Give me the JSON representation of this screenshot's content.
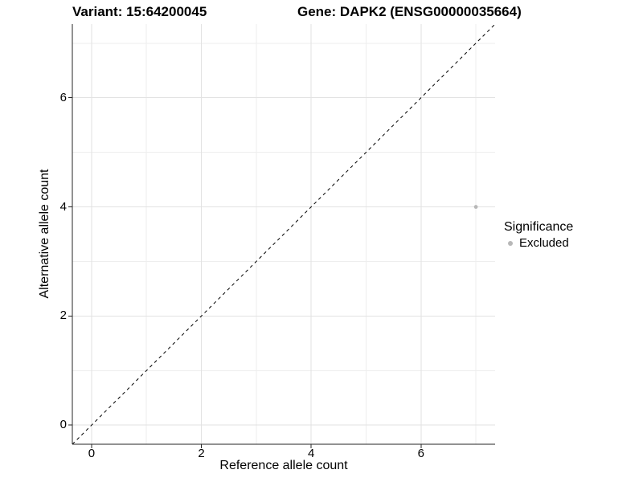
{
  "figure": {
    "title_left": "Variant: 15:64200045",
    "title_right": "Gene: DAPK2 (ENSG00000035664)"
  },
  "chart_data": {
    "type": "scatter",
    "title": "Variant: 15:64200045   Gene: DAPK2 (ENSG00000035664)",
    "xlabel": "Reference allele count",
    "ylabel": "Alternative allele count",
    "x_domain": [
      -0.35,
      7.35
    ],
    "y_domain": [
      -0.35,
      7.35
    ],
    "x_ticks": [
      0,
      2,
      4,
      6
    ],
    "y_ticks": [
      0,
      2,
      4,
      6
    ],
    "x_minor_ticks": [
      1,
      3,
      5,
      7
    ],
    "y_minor_ticks": [
      1,
      3,
      5,
      7
    ],
    "grid": true,
    "identity_line": {
      "type": "y=x",
      "style": "dashed",
      "color": "#000000"
    },
    "series": [
      {
        "name": "Excluded",
        "color": "#b8b8b8",
        "marker": "circle",
        "points": [
          {
            "x": 7,
            "y": 4
          }
        ]
      }
    ],
    "legend": {
      "title": "Significance",
      "position": "right",
      "entries": [
        {
          "label": "Excluded",
          "color": "#b8b8b8",
          "marker": "circle"
        }
      ]
    },
    "colors": {
      "background": "#ffffff",
      "grid_major": "#e2e2e2",
      "grid_minor": "#eeeeee",
      "axis_line": "#262626",
      "text": "#000000"
    }
  }
}
